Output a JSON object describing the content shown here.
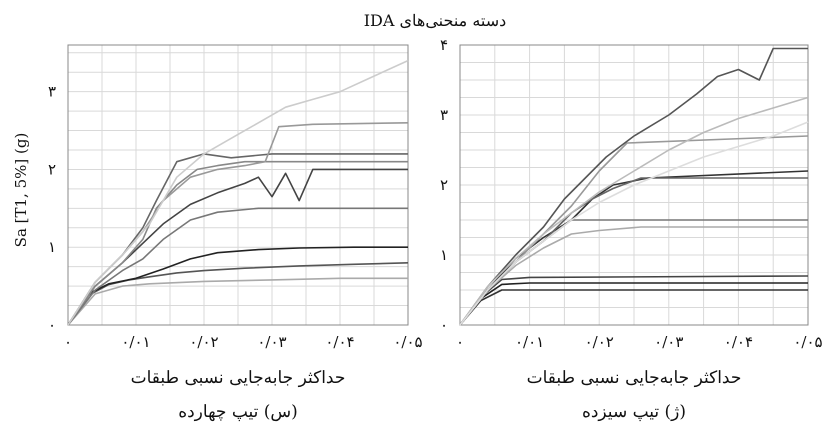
{
  "title": "دسته منحنی‌های IDA",
  "ylabel": "Sa [T1, 5%] (g)",
  "chart_data": [
    {
      "type": "line",
      "xlabel": "حداکثر جابه‌جایی نسبی طبقات",
      "caption": "(س) تیپ چهارده",
      "xlim": [
        0,
        0.05
      ],
      "ylim": [
        0,
        3.6
      ],
      "x_tick_labels": [
        "۰",
        "۰/۰۱",
        "۰/۰۲",
        "۰/۰۳",
        "۰/۰۴",
        "۰/۰۵"
      ],
      "y_tick_labels": [
        "۰",
        "۱",
        "۲",
        "۳"
      ],
      "x_ticks": [
        0,
        0.01,
        0.02,
        0.03,
        0.04,
        0.05
      ],
      "y_ticks": [
        0,
        1,
        2,
        3
      ],
      "grid": true,
      "series": [
        {
          "color": "#555555",
          "x": [
            0,
            0.003,
            0.006,
            0.009,
            0.012,
            0.016,
            0.02,
            0.026,
            0.034,
            0.042,
            0.05
          ],
          "y": [
            0,
            0.38,
            0.52,
            0.58,
            0.62,
            0.67,
            0.7,
            0.73,
            0.76,
            0.78,
            0.8
          ]
        },
        {
          "color": "#222222",
          "x": [
            0,
            0.003,
            0.006,
            0.01,
            0.014,
            0.018,
            0.022,
            0.028,
            0.034,
            0.042,
            0.05
          ],
          "y": [
            0,
            0.4,
            0.53,
            0.6,
            0.72,
            0.85,
            0.93,
            0.97,
            0.99,
            1.0,
            1.0
          ]
        },
        {
          "color": "#aaaaaa",
          "x": [
            0,
            0.004,
            0.008,
            0.012,
            0.02,
            0.03,
            0.04,
            0.05
          ],
          "y": [
            0,
            0.4,
            0.5,
            0.53,
            0.56,
            0.58,
            0.6,
            0.6
          ]
        },
        {
          "color": "#777777",
          "x": [
            0,
            0.004,
            0.008,
            0.011,
            0.014,
            0.018,
            0.022,
            0.028,
            0.05
          ],
          "y": [
            0,
            0.45,
            0.7,
            0.85,
            1.1,
            1.35,
            1.45,
            1.5,
            1.5
          ]
        },
        {
          "color": "#444444",
          "x": [
            0,
            0.004,
            0.008,
            0.011,
            0.014,
            0.018,
            0.022,
            0.026,
            0.028,
            0.03,
            0.032,
            0.034,
            0.036,
            0.05
          ],
          "y": [
            0,
            0.5,
            0.8,
            1.05,
            1.3,
            1.55,
            1.7,
            1.82,
            1.9,
            1.65,
            1.95,
            1.6,
            2.0,
            2.0
          ]
        },
        {
          "color": "#888888",
          "x": [
            0,
            0.004,
            0.008,
            0.011,
            0.013,
            0.016,
            0.019,
            0.022,
            0.026,
            0.05
          ],
          "y": [
            0,
            0.5,
            0.8,
            1.1,
            1.5,
            1.8,
            2.0,
            2.05,
            2.1,
            2.1
          ]
        },
        {
          "color": "#666666",
          "x": [
            0,
            0.004,
            0.008,
            0.011,
            0.013,
            0.016,
            0.02,
            0.024,
            0.03,
            0.05
          ],
          "y": [
            0,
            0.55,
            0.9,
            1.25,
            1.6,
            2.1,
            2.2,
            2.15,
            2.2,
            2.2
          ]
        },
        {
          "color": "#999999",
          "x": [
            0,
            0.004,
            0.008,
            0.011,
            0.014,
            0.018,
            0.022,
            0.026,
            0.029,
            0.031,
            0.036,
            0.05
          ],
          "y": [
            0,
            0.55,
            0.9,
            1.2,
            1.6,
            1.9,
            2.0,
            2.05,
            2.1,
            2.55,
            2.58,
            2.6
          ]
        },
        {
          "color": "#cccccc",
          "x": [
            0,
            0.004,
            0.008,
            0.012,
            0.016,
            0.02,
            0.024,
            0.028,
            0.032,
            0.036,
            0.04,
            0.045,
            0.05
          ],
          "y": [
            0,
            0.55,
            0.9,
            1.3,
            1.9,
            2.2,
            2.4,
            2.6,
            2.8,
            2.9,
            3.0,
            3.2,
            3.4
          ]
        }
      ]
    },
    {
      "type": "line",
      "xlabel": "حداکثر جابه‌جایی نسبی طبقات",
      "caption": "(ژ) تیپ سیزده",
      "xlim": [
        0,
        0.05
      ],
      "ylim": [
        0,
        4
      ],
      "x_tick_labels": [
        "۰",
        "۰/۰۱",
        "۰/۰۲",
        "۰/۰۳",
        "۰/۰۴",
        "۰/۰۵"
      ],
      "y_tick_labels": [
        "۰",
        "۱",
        "۲",
        "۳",
        "۴"
      ],
      "x_ticks": [
        0,
        0.01,
        0.02,
        0.03,
        0.04,
        0.05
      ],
      "y_ticks": [
        0,
        1,
        2,
        3,
        4
      ],
      "grid": true,
      "series": [
        {
          "color": "#333333",
          "x": [
            0,
            0.003,
            0.006,
            0.01,
            0.05
          ],
          "y": [
            0,
            0.35,
            0.5,
            0.5,
            0.5
          ]
        },
        {
          "color": "#222222",
          "x": [
            0,
            0.003,
            0.006,
            0.01,
            0.05
          ],
          "y": [
            0,
            0.38,
            0.58,
            0.6,
            0.6
          ]
        },
        {
          "color": "#444444",
          "x": [
            0,
            0.003,
            0.006,
            0.01,
            0.05
          ],
          "y": [
            0,
            0.4,
            0.65,
            0.68,
            0.7
          ]
        },
        {
          "color": "#777777",
          "x": [
            0,
            0.004,
            0.008,
            0.012,
            0.016,
            0.05
          ],
          "y": [
            0,
            0.5,
            0.9,
            1.2,
            1.5,
            1.5
          ]
        },
        {
          "color": "#aaaaaa",
          "x": [
            0,
            0.004,
            0.008,
            0.012,
            0.016,
            0.02,
            0.026,
            0.05
          ],
          "y": [
            0,
            0.5,
            0.85,
            1.1,
            1.3,
            1.35,
            1.4,
            1.4
          ]
        },
        {
          "color": "#333333",
          "x": [
            0,
            0.004,
            0.008,
            0.012,
            0.016,
            0.019,
            0.022,
            0.027,
            0.05
          ],
          "y": [
            0,
            0.5,
            0.95,
            1.25,
            1.5,
            1.8,
            2.0,
            2.1,
            2.2
          ]
        },
        {
          "color": "#666666",
          "x": [
            0,
            0.004,
            0.008,
            0.012,
            0.016,
            0.019,
            0.022,
            0.026,
            0.05
          ],
          "y": [
            0,
            0.5,
            0.9,
            1.2,
            1.6,
            1.8,
            1.95,
            2.1,
            2.1
          ]
        },
        {
          "color": "#999999",
          "x": [
            0,
            0.004,
            0.008,
            0.012,
            0.016,
            0.02,
            0.024,
            0.05
          ],
          "y": [
            0,
            0.5,
            0.9,
            1.3,
            1.7,
            2.2,
            2.6,
            2.7
          ]
        },
        {
          "color": "#555555",
          "x": [
            0,
            0.004,
            0.008,
            0.012,
            0.015,
            0.018,
            0.021,
            0.025,
            0.03,
            0.034,
            0.037,
            0.04,
            0.043,
            0.045,
            0.05
          ],
          "y": [
            0,
            0.55,
            1.0,
            1.4,
            1.8,
            2.1,
            2.4,
            2.7,
            3.0,
            3.3,
            3.55,
            3.65,
            3.5,
            3.95,
            3.95
          ]
        },
        {
          "color": "#bbbbbb",
          "x": [
            0,
            0.004,
            0.008,
            0.012,
            0.016,
            0.02,
            0.025,
            0.03,
            0.035,
            0.04,
            0.045,
            0.05
          ],
          "y": [
            0,
            0.55,
            0.95,
            1.3,
            1.6,
            1.9,
            2.2,
            2.5,
            2.75,
            2.95,
            3.1,
            3.25
          ]
        },
        {
          "color": "#dddddd",
          "x": [
            0,
            0.004,
            0.008,
            0.012,
            0.016,
            0.02,
            0.025,
            0.03,
            0.035,
            0.04,
            0.045,
            0.05
          ],
          "y": [
            0,
            0.5,
            0.9,
            1.2,
            1.5,
            1.75,
            2.0,
            2.2,
            2.4,
            2.55,
            2.7,
            2.9
          ]
        }
      ]
    }
  ]
}
